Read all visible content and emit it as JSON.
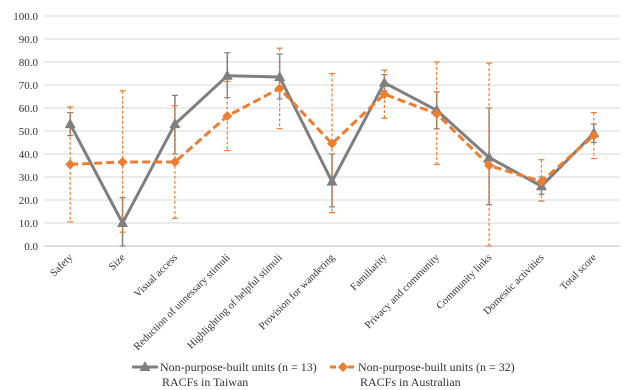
{
  "chart_data": {
    "type": "line",
    "categories": [
      "Safety",
      "Size",
      "Visual access",
      "Reduction of unnessary stimuli",
      "Highlighting of helpful stimuli",
      "Provision for wandering",
      "Familiarity",
      "Privacy and community",
      "Community links",
      "Domestic activities",
      "Total score"
    ],
    "yticks": [
      "0.0",
      "10.0",
      "20.0",
      "30.0",
      "40.0",
      "50.0",
      "60.0",
      "70.0",
      "80.0",
      "90.0",
      "100.0"
    ],
    "ylim": [
      0,
      100
    ],
    "grid": true,
    "legend_position": "bottom",
    "series": [
      {
        "name": "Non-purpose-built units (n = 13)",
        "name_line2": "RACFs in Taiwan",
        "color": "#7f7f7f",
        "line_style": "solid",
        "marker": "triangle",
        "values": [
          53,
          10,
          53,
          74,
          73.5,
          28,
          71,
          59,
          38.5,
          26,
          49
        ],
        "error_low": [
          48,
          0,
          40,
          64.5,
          64,
          17,
          67.5,
          51,
          18,
          22.5,
          45
        ],
        "error_high": [
          58,
          21,
          65.5,
          84,
          83.5,
          40,
          74.5,
          67,
          60,
          30,
          53
        ]
      },
      {
        "name": "Non-purpose-built units (n = 32)",
        "name_line2": "RACFs in Australian",
        "color": "#ed7d31",
        "line_style": "dashed",
        "marker": "diamond",
        "values": [
          35.5,
          36.5,
          36.5,
          56.5,
          68.5,
          44.5,
          66,
          57.5,
          35,
          28,
          48
        ],
        "error_low": [
          10.5,
          6,
          12,
          41.5,
          51,
          14.5,
          55.5,
          35.5,
          0,
          19.5,
          38
        ],
        "error_high": [
          60.5,
          67.5,
          61,
          71.5,
          86,
          75,
          76.5,
          80,
          79.5,
          37.5,
          58
        ]
      }
    ]
  }
}
